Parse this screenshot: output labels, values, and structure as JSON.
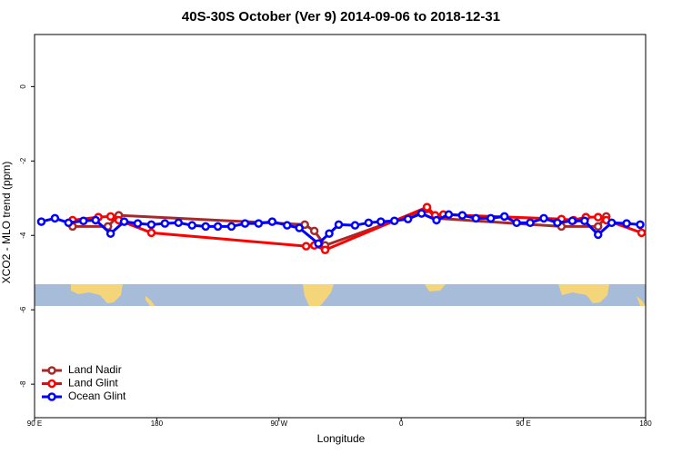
{
  "chart_data": {
    "type": "line",
    "title": "40S-30S October (Ver 9)   2014-09-06 to 2018-12-31",
    "x_label": "Longitude",
    "y_label": "XCO2 - MLO trend (ppm)",
    "xlim": [
      90,
      540
    ],
    "xticks": [
      {
        "value": 90,
        "label": "90 E"
      },
      {
        "value": 180,
        "label": "180"
      },
      {
        "value": 270,
        "label": "90 W"
      },
      {
        "value": 360,
        "label": "0"
      },
      {
        "value": 450,
        "label": "90 E"
      },
      {
        "value": 540,
        "label": "180"
      }
    ],
    "ylim": [
      -8.9,
      1.4
    ],
    "yticks": [
      0,
      -2,
      -4,
      -6,
      -8
    ],
    "legend": "bottom-left",
    "series": [
      {
        "name": "Land Nadir",
        "color": "#a52a2a",
        "x": [
          118,
          144,
          152,
          289,
          296,
          304,
          379,
          386,
          478,
          505,
          511
        ],
        "values": [
          -3.76,
          -3.76,
          -3.46,
          -3.71,
          -3.88,
          -4.27,
          -3.29,
          -3.54,
          -3.76,
          -3.76,
          -3.49
        ]
      },
      {
        "name": "Land Glint",
        "color": "#ff0000",
        "x": [
          118,
          137,
          146,
          152,
          176,
          290,
          296,
          304,
          379,
          385,
          391,
          478,
          487,
          496,
          505,
          511,
          537
        ],
        "values": [
          -3.59,
          -3.51,
          -3.49,
          -3.59,
          -3.93,
          -4.29,
          -4.27,
          -4.39,
          -3.24,
          -3.46,
          -3.44,
          -3.56,
          -3.59,
          -3.51,
          -3.51,
          -3.59,
          -3.93
        ]
      },
      {
        "name": "Ocean Glint",
        "color": "#0000ff",
        "x": [
          95,
          105,
          115,
          126,
          135,
          146,
          156,
          166,
          176,
          186,
          196,
          206,
          216,
          225,
          235,
          245,
          255,
          265,
          276,
          285,
          299,
          307,
          314,
          326,
          336,
          345,
          355,
          365,
          375,
          386,
          395,
          405,
          415,
          426,
          436,
          445,
          455,
          465,
          475,
          486,
          495,
          505,
          515,
          526,
          536
        ],
        "values": [
          -3.63,
          -3.54,
          -3.66,
          -3.61,
          -3.59,
          -3.95,
          -3.63,
          -3.68,
          -3.71,
          -3.68,
          -3.66,
          -3.73,
          -3.76,
          -3.76,
          -3.76,
          -3.68,
          -3.68,
          -3.63,
          -3.73,
          -3.8,
          -4.22,
          -3.95,
          -3.71,
          -3.73,
          -3.66,
          -3.63,
          -3.61,
          -3.56,
          -3.41,
          -3.59,
          -3.44,
          -3.46,
          -3.54,
          -3.54,
          -3.49,
          -3.66,
          -3.66,
          -3.54,
          -3.66,
          -3.61,
          -3.61,
          -3.98,
          -3.66,
          -3.68,
          -3.71
        ]
      }
    ]
  }
}
